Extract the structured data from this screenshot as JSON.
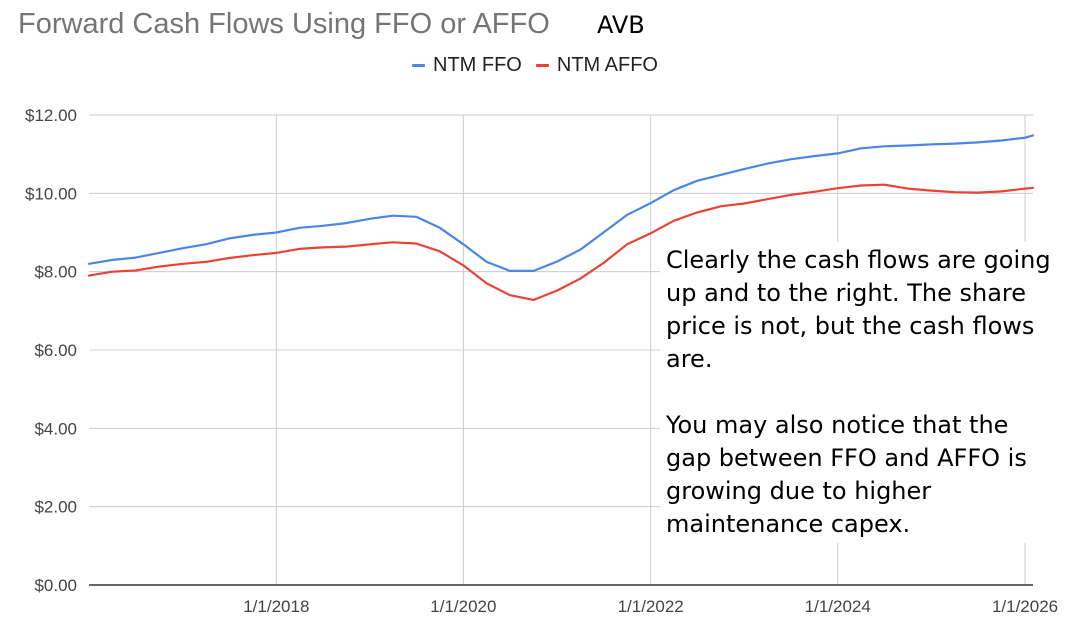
{
  "title": "Forward Cash Flows Using FFO or AFFO",
  "ticker": "AVB",
  "legend": [
    {
      "label": "NTM FFO",
      "color": "#4a86e8"
    },
    {
      "label": "NTM AFFO",
      "color": "#e84335"
    }
  ],
  "annotation": {
    "paragraph1": "Clearly the cash flows are going up and to the right. The share price is not, but the cash flows are.",
    "paragraph2": "You may also notice that the gap between FFO and AFFO is growing due to higher maintenance capex."
  },
  "chart_data": {
    "type": "line",
    "title": "Forward Cash Flows Using FFO or AFFO",
    "xlabel": "",
    "ylabel": "",
    "xlim": [
      "2016-01-01",
      "2026-02-01"
    ],
    "ylim": [
      0,
      12
    ],
    "y_ticks": [
      "$0.00",
      "$2.00",
      "$4.00",
      "$6.00",
      "$8.00",
      "$10.00",
      "$12.00"
    ],
    "x_ticks": [
      "1/1/2018",
      "1/1/2020",
      "1/1/2022",
      "1/1/2024",
      "1/1/2026"
    ],
    "grid": true,
    "legend_position": "top",
    "x": [
      "2016-01-01",
      "2016-04-01",
      "2016-07-01",
      "2016-10-01",
      "2017-01-01",
      "2017-04-01",
      "2017-07-01",
      "2017-10-01",
      "2018-01-01",
      "2018-04-01",
      "2018-07-01",
      "2018-10-01",
      "2019-01-01",
      "2019-04-01",
      "2019-07-01",
      "2019-10-01",
      "2020-01-01",
      "2020-04-01",
      "2020-07-01",
      "2020-10-01",
      "2021-01-01",
      "2021-04-01",
      "2021-07-01",
      "2021-10-01",
      "2022-01-01",
      "2022-04-01",
      "2022-07-01",
      "2022-10-01",
      "2023-01-01",
      "2023-04-01",
      "2023-07-01",
      "2023-10-01",
      "2024-01-01",
      "2024-04-01",
      "2024-07-01",
      "2024-10-01",
      "2025-01-01",
      "2025-04-01",
      "2025-07-01",
      "2025-10-01",
      "2026-01-01",
      "2026-02-01"
    ],
    "series": [
      {
        "name": "NTM FFO",
        "color": "#4a86e8",
        "values": [
          8.2,
          8.3,
          8.36,
          8.48,
          8.6,
          8.7,
          8.85,
          8.94,
          9.0,
          9.12,
          9.17,
          9.24,
          9.35,
          9.43,
          9.4,
          9.12,
          8.7,
          8.25,
          8.02,
          8.02,
          8.26,
          8.56,
          9.0,
          9.45,
          9.75,
          10.08,
          10.32,
          10.47,
          10.62,
          10.76,
          10.87,
          10.95,
          11.02,
          11.15,
          11.2,
          11.22,
          11.25,
          11.27,
          11.3,
          11.35,
          11.42,
          11.48
        ]
      },
      {
        "name": "NTM AFFO",
        "color": "#e84335",
        "values": [
          7.9,
          8.0,
          8.03,
          8.13,
          8.2,
          8.25,
          8.35,
          8.42,
          8.48,
          8.58,
          8.62,
          8.64,
          8.7,
          8.75,
          8.72,
          8.52,
          8.16,
          7.7,
          7.4,
          7.28,
          7.52,
          7.82,
          8.22,
          8.7,
          8.98,
          9.3,
          9.51,
          9.67,
          9.74,
          9.85,
          9.96,
          10.04,
          10.13,
          10.2,
          10.22,
          10.12,
          10.07,
          10.03,
          10.02,
          10.05,
          10.12,
          10.14
        ]
      }
    ]
  }
}
